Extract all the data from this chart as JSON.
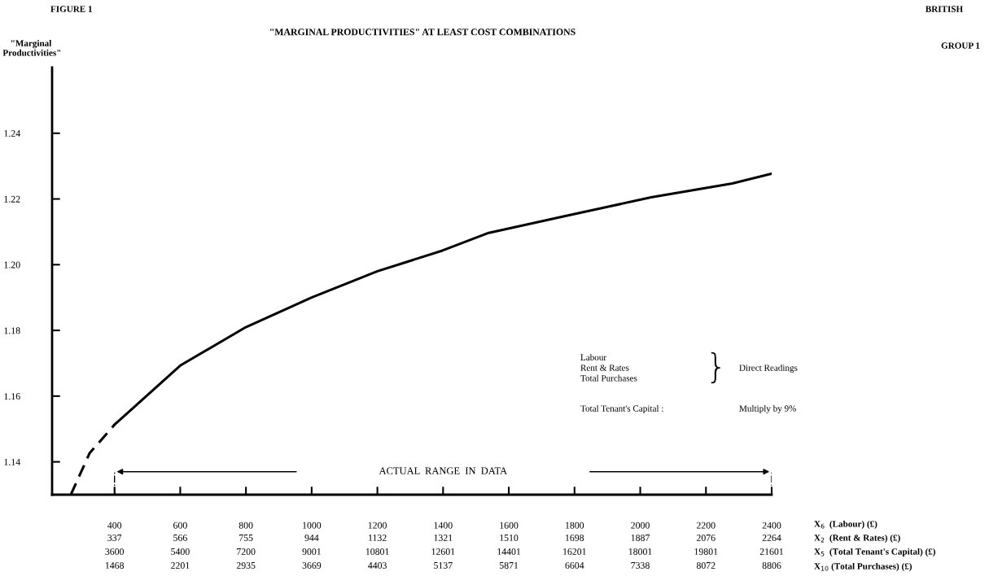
{
  "chart_data": {
    "type": "line",
    "title": "\"MARGINAL PRODUCTIVITIES\" AT LEAST COST COMBINATIONS",
    "ylabel": "\"Marginal\n Productivities\"",
    "annotations": [
      "FIGURE 1",
      "BRITISH",
      "GROUP 1",
      "Labour\nRent & Rates\nTotal Purchases",
      "}",
      "Direct Readings",
      "Total Tenant's Capital :",
      "Multiply by 9%",
      "X$_{6}$  (Labour) (£)",
      "X$_{2}$  (Rent & Rates) (£)",
      "X$_{5}$  (Total Tenant's Capital) (£)",
      "X$_{10}$ (Total Purchases) (£)",
      "ACTUAL  RANGE  IN  DATA",
      "337",
      "566",
      "755",
      "944",
      "1132",
      "1321",
      "1510",
      "1698",
      "1887",
      "2076",
      "2264",
      "3600",
      "5400",
      "7200",
      "9001",
      "10801",
      "12601",
      "14401",
      "16201",
      "18001",
      "19801",
      "21601",
      "1468",
      "2201",
      "2935",
      "3669",
      "4403",
      "5137",
      "5871",
      "6604",
      "7338",
      "8072",
      "8806"
    ],
    "series": [
      {
        "line_style": "dashed",
        "color": "#000000",
        "x": [
          267,
          324,
          400
        ],
        "values": [
          1.13,
          1.1426,
          1.1513
        ]
      },
      {
        "line_style": "solid",
        "color": "#000000",
        "x": [
          400,
          600,
          800,
          1000,
          1200,
          1291,
          1398,
          1539,
          1786,
          2033,
          2280,
          2400
        ],
        "values": [
          1.1513,
          1.1693,
          1.181,
          1.19,
          1.198,
          1.2009,
          1.2043,
          1.2097,
          1.2151,
          1.2205,
          1.2247,
          1.2277
        ]
      }
    ],
    "xlim": [
      210,
      2400
    ],
    "ylim": [
      1.13,
      1.26
    ],
    "xticks": [
      400,
      600,
      800,
      1000,
      1200,
      1400,
      1600,
      1800,
      2000,
      2200,
      2400
    ],
    "yticks": [
      1.14,
      1.16,
      1.18,
      {
        "value": 1.2,
        "label": "1.20"
      },
      1.22,
      1.24
    ]
  }
}
